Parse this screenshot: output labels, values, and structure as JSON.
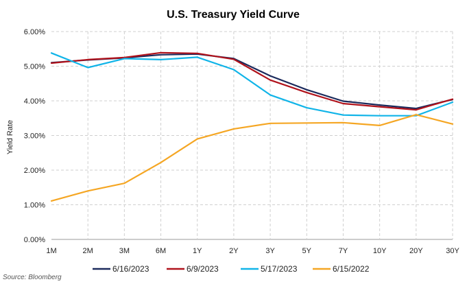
{
  "chart_data": {
    "type": "line",
    "title": "U.S. Treasury Yield Curve",
    "xlabel": "",
    "ylabel": "Yield Rate",
    "categories": [
      "1M",
      "2M",
      "3M",
      "6M",
      "1Y",
      "2Y",
      "3Y",
      "5Y",
      "7Y",
      "10Y",
      "20Y",
      "30Y"
    ],
    "ylim": [
      0,
      6
    ],
    "yticks": [
      "0.00%",
      "1.00%",
      "2.00%",
      "3.00%",
      "4.00%",
      "5.00%",
      "6.00%"
    ],
    "grid": true,
    "legend_position": "bottom",
    "source": "Source: Bloomberg",
    "series": [
      {
        "name": "6/16/2023",
        "color": "#1b2a5c",
        "values": [
          5.1,
          5.18,
          5.24,
          5.33,
          5.35,
          5.22,
          4.72,
          4.32,
          3.99,
          3.88,
          3.78,
          4.04
        ]
      },
      {
        "name": "6/9/2023",
        "color": "#b0121b",
        "values": [
          5.09,
          5.19,
          5.25,
          5.39,
          5.37,
          5.2,
          4.6,
          4.24,
          3.92,
          3.83,
          3.74,
          4.05
        ]
      },
      {
        "name": "5/17/2023",
        "color": "#10b4e8",
        "values": [
          5.38,
          4.96,
          5.22,
          5.19,
          5.26,
          4.9,
          4.17,
          3.8,
          3.59,
          3.57,
          3.57,
          3.96
        ]
      },
      {
        "name": "6/15/2022",
        "color": "#f5a623",
        "values": [
          1.11,
          1.4,
          1.62,
          2.22,
          2.9,
          3.19,
          3.35,
          3.36,
          3.37,
          3.29,
          3.6,
          3.33
        ]
      }
    ]
  }
}
